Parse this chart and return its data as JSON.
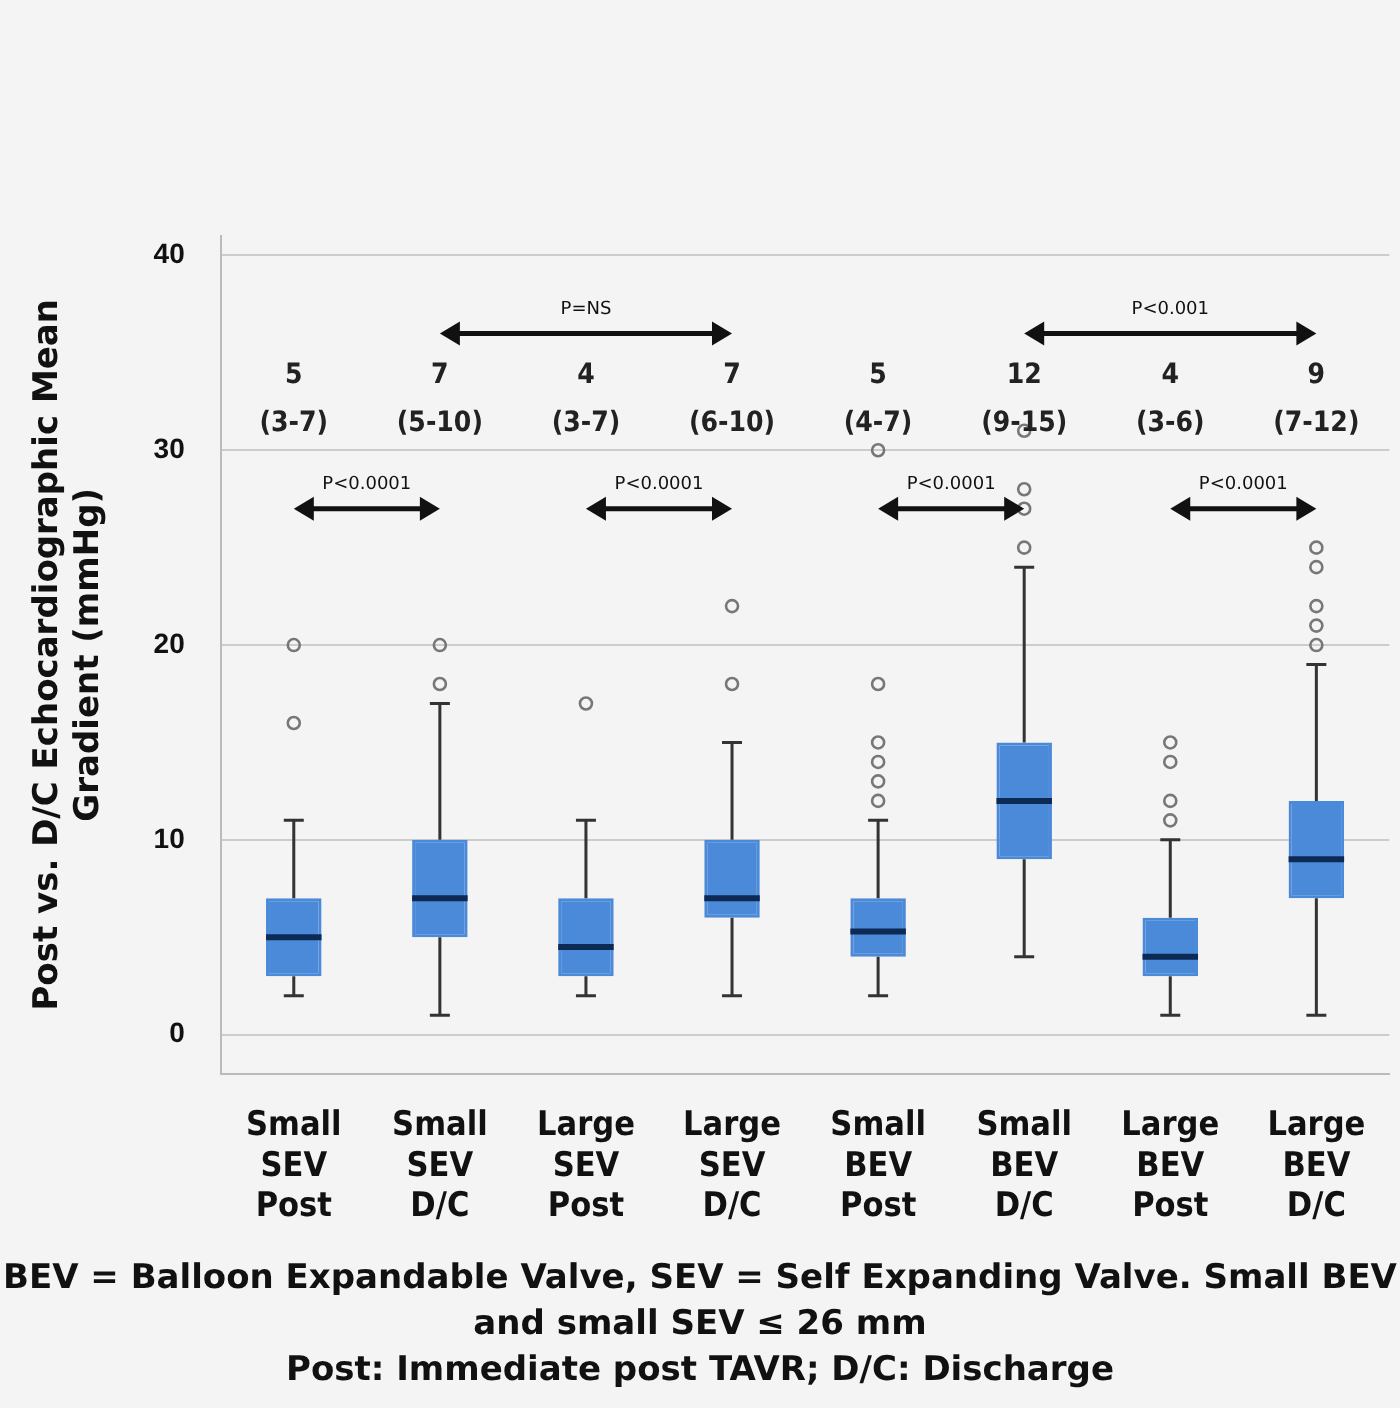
{
  "chart_data": {
    "type": "box",
    "ylabel": "Post vs. D/C Echocardiographic Mean Gradient (mmHg)",
    "categories": [
      "Small SEV Post",
      "Small SEV D/C",
      "Large SEV Post",
      "Large SEV D/C",
      "Small BEV Post",
      "Small BEV D/C",
      "Large BEV Post",
      "Large BEV D/C"
    ],
    "color": "#4a8ad8",
    "marker": "circle",
    "grid": "y",
    "ylim": [
      -2,
      41
    ],
    "yticks": [
      0,
      10,
      20,
      30,
      40
    ],
    "boxes": [
      {
        "low": 2,
        "q1": 3,
        "median": 5,
        "q3": 7,
        "high": 11,
        "outliers": [
          16,
          20
        ]
      },
      {
        "low": 1,
        "q1": 5,
        "median": 7,
        "q3": 10,
        "high": 17,
        "outliers": [
          18,
          20
        ]
      },
      {
        "low": 2,
        "q1": 3,
        "median": 4.5,
        "q3": 7,
        "high": 11,
        "outliers": [
          17
        ]
      },
      {
        "low": 2,
        "q1": 6,
        "median": 7,
        "q3": 10,
        "high": 15,
        "outliers": [
          18,
          22
        ]
      },
      {
        "low": 2,
        "q1": 4,
        "median": 5.3,
        "q3": 7,
        "high": 11,
        "outliers": [
          12,
          13,
          14,
          15,
          18,
          30
        ]
      },
      {
        "low": 4,
        "q1": 9,
        "median": 12,
        "q3": 15,
        "high": 24,
        "outliers": [
          25,
          27,
          28,
          31
        ]
      },
      {
        "low": 1,
        "q1": 3,
        "median": 4,
        "q3": 6,
        "high": 10,
        "outliers": [
          11,
          12,
          14,
          15
        ]
      },
      {
        "low": 1,
        "q1": 7,
        "median": 9,
        "q3": 12,
        "high": 19,
        "outliers": [
          20,
          21,
          22,
          24,
          25
        ]
      }
    ],
    "annotations": [
      "5\n(3-7)",
      "7\n(5-10)",
      "4\n(3-7)",
      "7\n(6-10)",
      "5\n(4-7)",
      "12\n(9-15)",
      "4\n(3-6)",
      "9\n(7-12)",
      "P<0.0001",
      "P=NS",
      "P<0.0001",
      "P<0.0001",
      "P<0.001",
      "P<0.0001",
      "BEV = Balloon Expandable Valve, SEV = Self Expanding Valve. Small BEV and small SEV ≤ 26 mm",
      "Post: Immediate post TAVR; D/C: Discharge"
    ]
  }
}
